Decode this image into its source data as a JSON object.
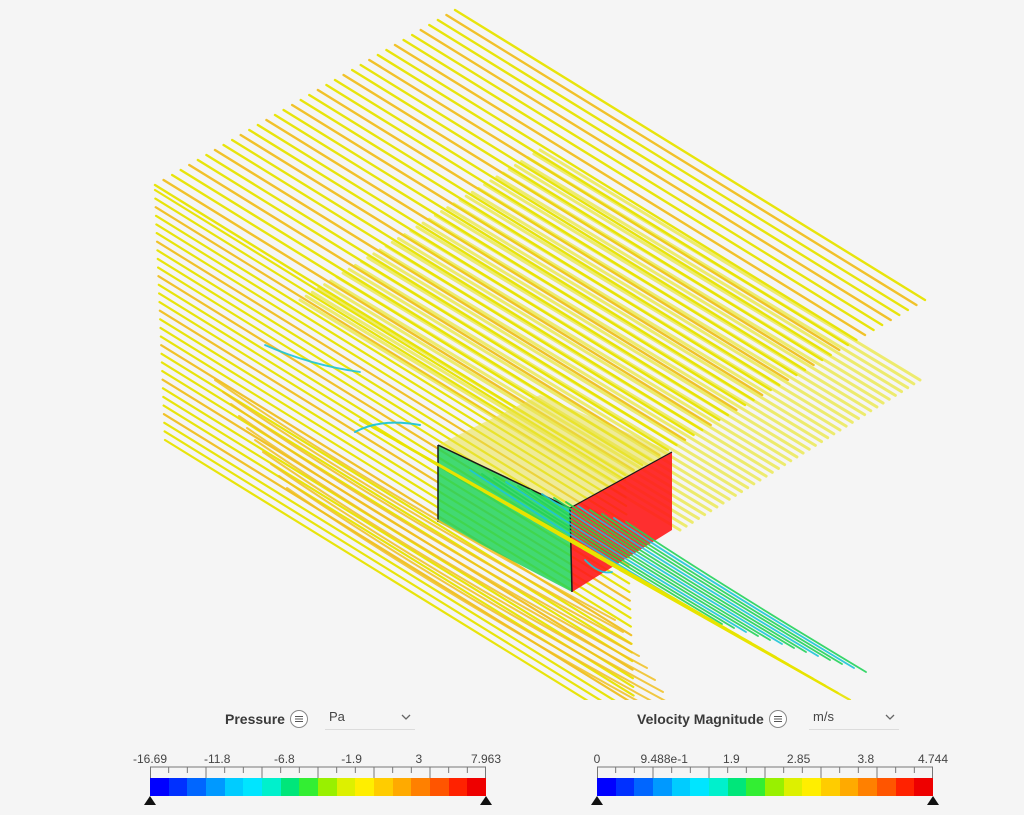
{
  "viewport": {
    "streamline_color": "#e8e400",
    "streamline_alt_color": "#f0c020",
    "surface_colors": {
      "green": "#22d35a",
      "red": "#ff1a1a",
      "cyan": "#1cc4d8",
      "orange": "#ff8a1e"
    }
  },
  "pressure_legend": {
    "title": "Pressure",
    "menu_icon": "list-icon",
    "unit": "Pa",
    "ticks": [
      "-16.69",
      "-11.8",
      "-6.8",
      "-1.9",
      "3",
      "7.963"
    ],
    "colors": [
      "#0000ff",
      "#0030ff",
      "#0066ff",
      "#0099ff",
      "#00ccff",
      "#00e5ff",
      "#00f0cc",
      "#00e67a",
      "#33ee33",
      "#99f000",
      "#ddf000",
      "#ffee00",
      "#ffcc00",
      "#ffaa00",
      "#ff8000",
      "#ff5500",
      "#ff2200",
      "#ee0000"
    ]
  },
  "velocity_legend": {
    "title": "Velocity Magnitude",
    "menu_icon": "list-icon",
    "unit": "m/s",
    "ticks": [
      "0",
      "9.488e-1",
      "1.9",
      "2.85",
      "3.8",
      "4.744"
    ],
    "colors": [
      "#0000ff",
      "#0030ff",
      "#0066ff",
      "#0099ff",
      "#00ccff",
      "#00e5ff",
      "#00f0cc",
      "#00e67a",
      "#33ee33",
      "#99f000",
      "#ddf000",
      "#ffee00",
      "#ffcc00",
      "#ffaa00",
      "#ff8000",
      "#ff5500",
      "#ff2200",
      "#ee0000"
    ]
  }
}
